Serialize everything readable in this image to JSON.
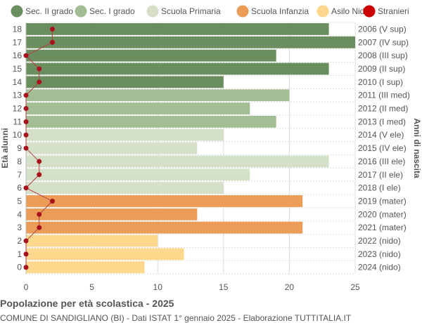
{
  "chart_data": {
    "type": "bar",
    "orientation": "horizontal",
    "title": "Popolazione per età scolastica - 2025",
    "subtitle": "COMUNE DI SANDIGLIANO (BI) - Dati ISTAT 1° gennaio 2025 - Elaborazione TUTTITALIA.IT",
    "ylabel": "Età alunni",
    "ylabel_right": "Anni di nascita",
    "xlim": [
      0,
      25
    ],
    "xticks": [
      0,
      5,
      10,
      15,
      20,
      25
    ],
    "grid": true,
    "legend_position": "top",
    "legend": [
      {
        "name": "Sec. II grado",
        "color": "#6b8e5e"
      },
      {
        "name": "Sec. I grado",
        "color": "#a3bd94"
      },
      {
        "name": "Scuola Primaria",
        "color": "#d4e0c7"
      },
      {
        "name": "Scuola Infanzia",
        "color": "#eb9d57"
      },
      {
        "name": "Asilo Nido",
        "color": "#fdd78c"
      },
      {
        "name": "Stranieri",
        "color": "#cc0000"
      }
    ],
    "categories": [
      "18",
      "17",
      "16",
      "15",
      "14",
      "13",
      "12",
      "11",
      "10",
      "9",
      "8",
      "7",
      "6",
      "5",
      "4",
      "3",
      "2",
      "1",
      "0"
    ],
    "birth_years": [
      "2006 (V sup)",
      "2007 (IV sup)",
      "2008 (III sup)",
      "2009 (II sup)",
      "2010 (I sup)",
      "2011 (III med)",
      "2012 (II med)",
      "2013 (I med)",
      "2014 (V ele)",
      "2015 (IV ele)",
      "2016 (III ele)",
      "2017 (II ele)",
      "2018 (I ele)",
      "2019 (mater)",
      "2020 (mater)",
      "2021 (mater)",
      "2022 (nido)",
      "2023 (nido)",
      "2024 (nido)"
    ],
    "school_level": [
      0,
      0,
      0,
      0,
      0,
      1,
      1,
      1,
      2,
      2,
      2,
      2,
      2,
      3,
      3,
      3,
      4,
      4,
      4
    ],
    "values": [
      23,
      25,
      19,
      23,
      15,
      20,
      17,
      19,
      15,
      13,
      23,
      17,
      15,
      21,
      13,
      21,
      10,
      12,
      9
    ],
    "stranieri": [
      2,
      2,
      0,
      1,
      1,
      0,
      0,
      0,
      0,
      0,
      1,
      1,
      0,
      2,
      1,
      1,
      0,
      0,
      0
    ]
  }
}
